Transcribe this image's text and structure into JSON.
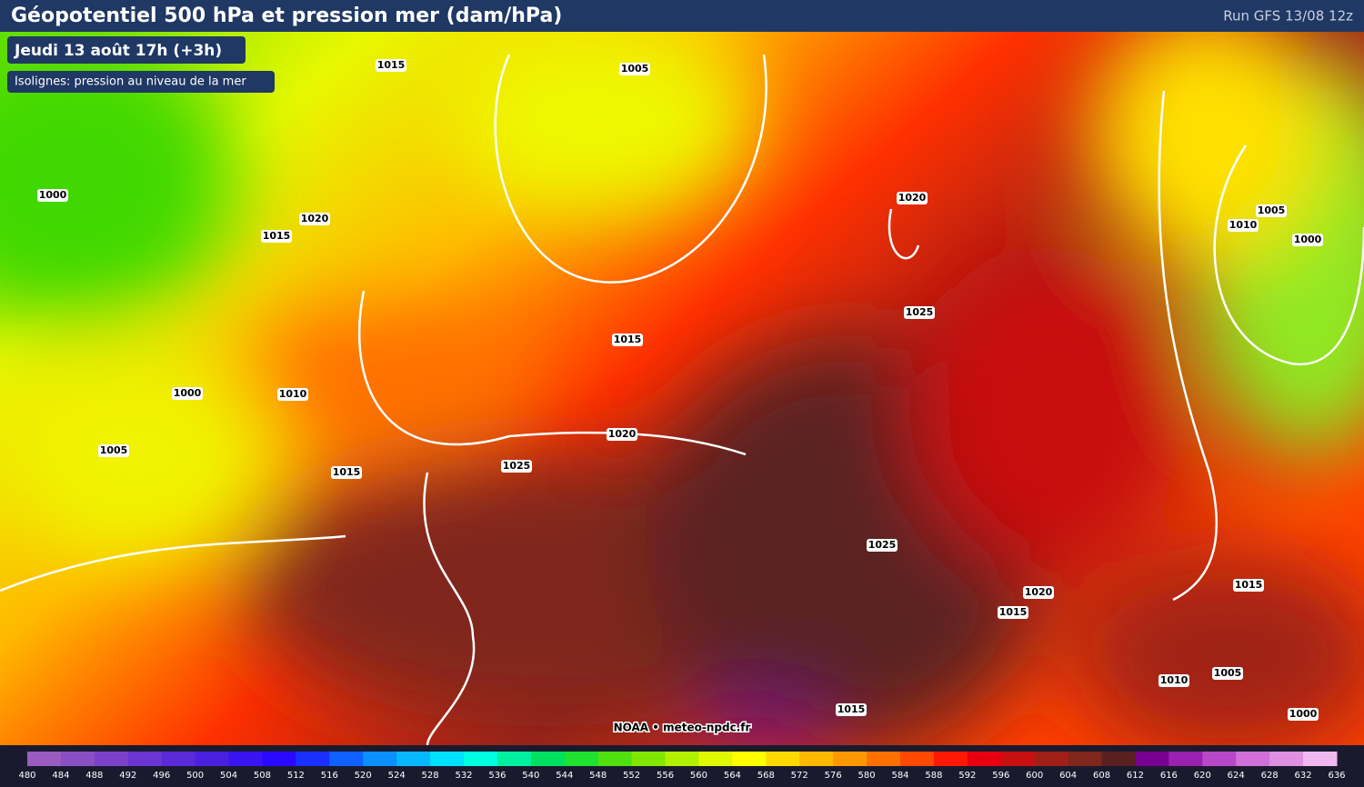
{
  "header": {
    "title": "Géopotentiel 500 hPa et pression mer (dam/hPa)",
    "run": "Run GFS 13/08 12z"
  },
  "date_label": "Jeudi 13 août 17h (+3h)",
  "isolines_label": "Isolignes: pression au niveau de la mer",
  "credit": "NOAA • meteo-npdc.fr",
  "isobar_labels": [
    1015,
    1005,
    1000,
    1020,
    1015,
    1020,
    1010,
    1005,
    1000,
    1025,
    1015,
    1000,
    1010,
    1020,
    1005,
    1025,
    1015,
    1025,
    1015,
    1020,
    1015,
    1010,
    1005,
    1015,
    1000
  ],
  "scale": {
    "labels": [
      480,
      484,
      488,
      492,
      496,
      500,
      504,
      508,
      512,
      516,
      520,
      524,
      528,
      532,
      536,
      540,
      544,
      548,
      552,
      556,
      560,
      564,
      568,
      572,
      576,
      580,
      584,
      588,
      592,
      596,
      600,
      604,
      608,
      612,
      616,
      620,
      624,
      628,
      632,
      636
    ],
    "colors": [
      "#9a5cc0",
      "#8a4fc2",
      "#7a42c8",
      "#6a35d0",
      "#5a2ad8",
      "#4a20e0",
      "#3a14f0",
      "#2a0aff",
      "#1a30ff",
      "#1060ff",
      "#0a90ff",
      "#08b8ff",
      "#00e0ff",
      "#00ffe0",
      "#00f0a0",
      "#00e060",
      "#20e030",
      "#50e010",
      "#80e800",
      "#b0f000",
      "#e0f800",
      "#ffff00",
      "#ffd800",
      "#ffb800",
      "#ff9800",
      "#ff7000",
      "#ff4800",
      "#ff1800",
      "#e80010",
      "#c81010",
      "#a02018",
      "#80261a",
      "#5a2020",
      "#780090",
      "#9a20b0",
      "#b848c8",
      "#d070d8",
      "#e090e0",
      "#f0b8f0"
    ]
  }
}
